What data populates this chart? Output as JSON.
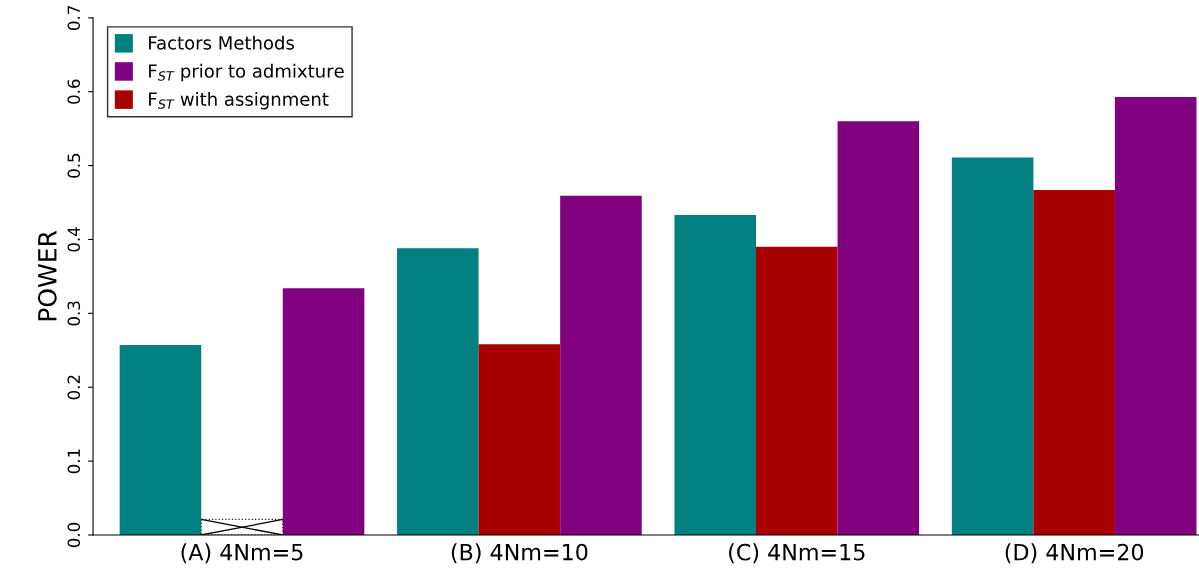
{
  "chart_data": {
    "type": "bar",
    "ylabel": "POWER",
    "categories": [
      "(A) 4Nm=5",
      "(B) 4Nm=10",
      "(C) 4Nm=15",
      "(D) 4Nm=20"
    ],
    "series": [
      {
        "name": "Factors Methods",
        "color": "#008080",
        "values": [
          0.257,
          0.388,
          0.433,
          0.511
        ]
      },
      {
        "name": "F$_{ST}$ with assignment",
        "color": "#a80000",
        "values": [
          null,
          0.258,
          0.39,
          0.467
        ]
      },
      {
        "name": "F$_{ST}$ prior to admixture",
        "color": "#800080",
        "values": [
          0.334,
          0.459,
          0.56,
          0.593
        ]
      }
    ],
    "ylim": [
      0,
      0.7
    ],
    "yticks": [
      {
        "value": 0,
        "label": "0.0"
      },
      0.1,
      0.2,
      0.3,
      0.4,
      0.5,
      0.6,
      0.7
    ],
    "grid": false,
    "legend": "top left"
  }
}
